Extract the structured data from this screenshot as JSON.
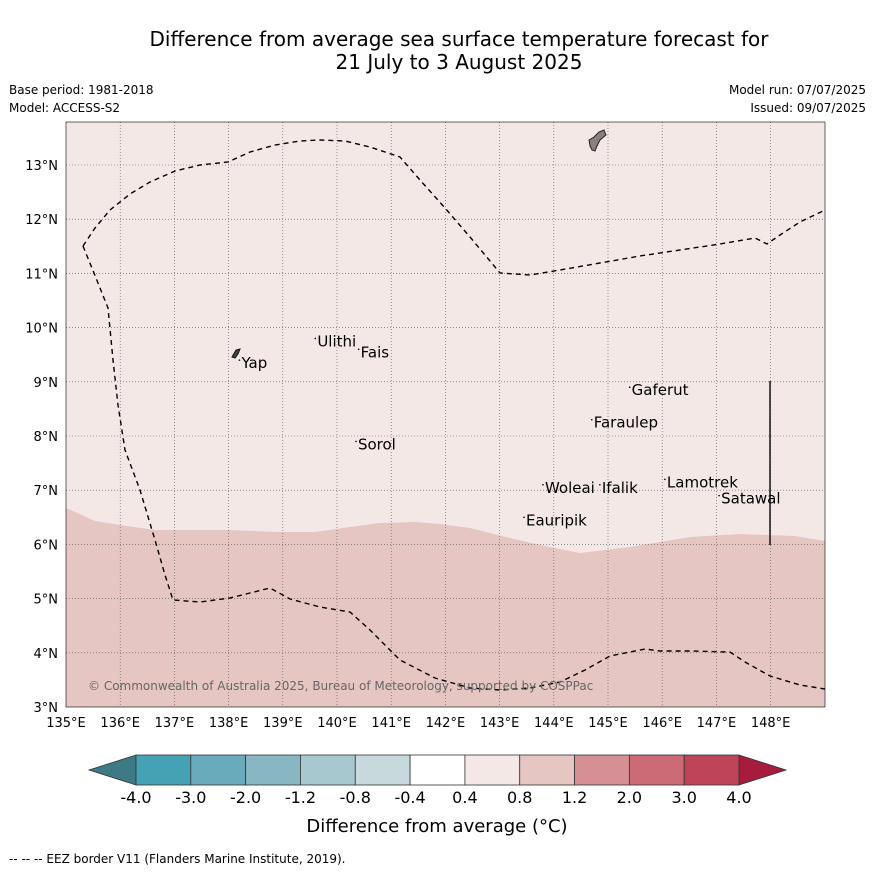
{
  "header": {
    "title_line1": "Difference from average sea surface temperature forecast for",
    "title_line2": "21 July to 3 August 2025",
    "base_period": "Base period: 1981-2018",
    "model": "Model: ACCESS-S2",
    "model_run": "Model run: 07/07/2025",
    "issued": "Issued: 09/07/2025"
  },
  "map": {
    "lon_range": [
      135,
      149
    ],
    "lat_range": [
      3,
      13.8
    ],
    "lon_ticks": [
      "135°E",
      "136°E",
      "137°E",
      "138°E",
      "139°E",
      "140°E",
      "141°E",
      "142°E",
      "143°E",
      "144°E",
      "145°E",
      "146°E",
      "147°E",
      "148°E"
    ],
    "lat_ticks": [
      "3°N",
      "4°N",
      "5°N",
      "6°N",
      "7°N",
      "8°N",
      "9°N",
      "10°N",
      "11°N",
      "12°N",
      "13°N"
    ],
    "copyright": "© Commonwealth of Australia 2025, Bureau of Meteorology, supported by COSPPac",
    "places": [
      {
        "name": "Yap",
        "lon": 138.2,
        "lat": 9.4
      },
      {
        "name": "Ulithi",
        "lon": 139.6,
        "lat": 9.8
      },
      {
        "name": "Fais",
        "lon": 140.4,
        "lat": 9.6
      },
      {
        "name": "Sorol",
        "lon": 140.35,
        "lat": 7.9
      },
      {
        "name": "Gaferut",
        "lon": 145.4,
        "lat": 8.9
      },
      {
        "name": "Faraulep",
        "lon": 144.7,
        "lat": 8.3
      },
      {
        "name": "Woleai",
        "lon": 143.8,
        "lat": 7.1
      },
      {
        "name": "Ifalik",
        "lon": 144.85,
        "lat": 7.1
      },
      {
        "name": "Lamotrek",
        "lon": 146.05,
        "lat": 7.2
      },
      {
        "name": "Satawal",
        "lon": 147.05,
        "lat": 6.9
      },
      {
        "name": "Eauripik",
        "lon": 143.45,
        "lat": 6.5
      }
    ],
    "fill_colors": {
      "band_0_4_to_0_8": "#f4e8e7",
      "band_0_8_to_1_2": "#e6c6c2"
    }
  },
  "colorbar": {
    "ticks": [
      "-4.0",
      "-3.0",
      "-2.0",
      "-1.2",
      "-0.8",
      "-0.4",
      "0.4",
      "0.8",
      "1.2",
      "2.0",
      "3.0",
      "4.0"
    ],
    "colors": [
      "#45a2b4",
      "#6aabbb",
      "#88b6c2",
      "#a8c8cf",
      "#c8d9dd",
      "#ffffff",
      "#f4e8e7",
      "#e6c6c2",
      "#d78f96",
      "#cc6b76",
      "#be4559"
    ],
    "under_color": "#3e7a85",
    "over_color": "#a71b3c",
    "label": "Difference from average (°C)"
  },
  "footer": {
    "eez": "--  --  -- EEZ border V11 (Flanders Marine Institute, 2019)."
  }
}
